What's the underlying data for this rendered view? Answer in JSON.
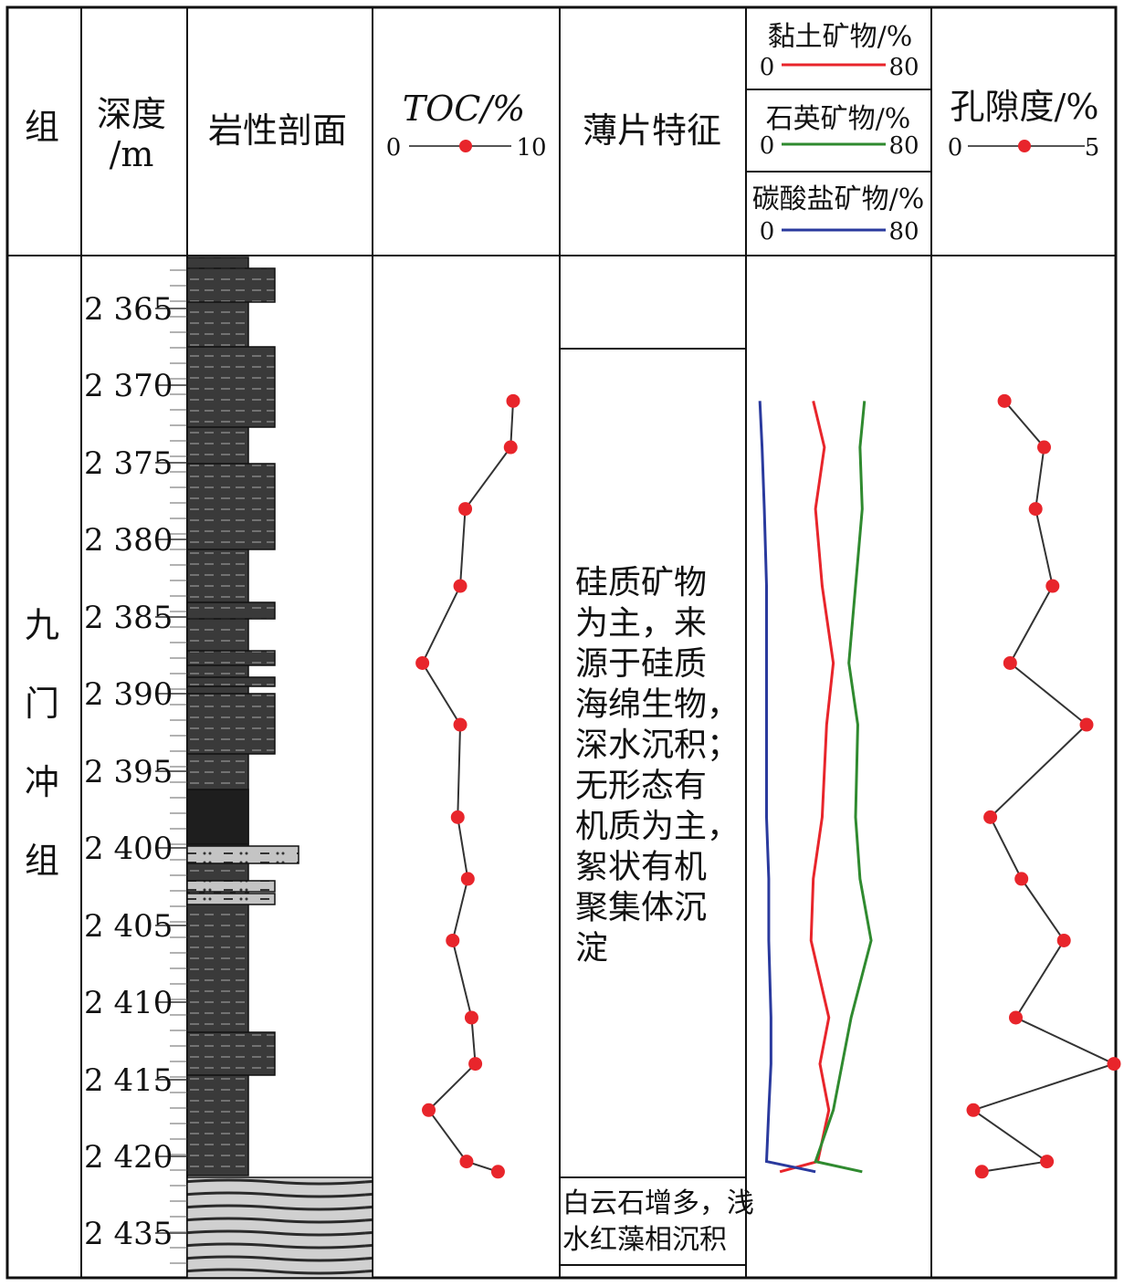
{
  "header": {
    "formation": "组",
    "depth": [
      "深度",
      "/m"
    ],
    "lithology": "岩性剖面",
    "toc": "TOC/%",
    "toc_min": "0",
    "toc_max": "10",
    "thin_section": "薄片特征",
    "clay": "黏土矿物/%",
    "quartz": "石英矿物/%",
    "carbonate": "碳酸盐矿物/%",
    "mineral_min": "0",
    "mineral_max": "80",
    "porosity": "孔隙度/%",
    "por_min": "0",
    "por_max": "5"
  },
  "formation_name": [
    "九",
    "门",
    "冲",
    "组"
  ],
  "thin_section_notes": {
    "main": [
      "硅质矿物",
      "为主，来",
      "源于硅质",
      "海绵生物，",
      "深水沉积；",
      "无形态有",
      "机质为主，",
      "絮状有机",
      "聚集体沉",
      "淀"
    ],
    "lower": [
      "白云石增多，浅",
      "水红藻相沉积"
    ]
  },
  "colors": {
    "clay": "#e8252b",
    "quartz": "#2f8a2f",
    "carbonate": "#2a3a9e",
    "marker": "#e8252b",
    "line": "#333333",
    "shale": "#333333",
    "limestone": "#bfbfbf"
  },
  "chart_data": {
    "type": "line",
    "depth_ticks": [
      "2 365",
      "2 370",
      "2 375",
      "2 380",
      "2 385",
      "2 390",
      "2 395",
      "2 400",
      "2 405",
      "2 410",
      "2 415",
      "2 420",
      "2 435"
    ],
    "toc": {
      "xlim": [
        0,
        10
      ],
      "points": [
        {
          "depth": 2371,
          "value": 10.0
        },
        {
          "depth": 2374,
          "value": 9.8
        },
        {
          "depth": 2378,
          "value": 6.2
        },
        {
          "depth": 2383,
          "value": 5.8
        },
        {
          "depth": 2388,
          "value": 2.8
        },
        {
          "depth": 2392,
          "value": 5.8
        },
        {
          "depth": 2398,
          "value": 5.6
        },
        {
          "depth": 2402,
          "value": 6.4
        },
        {
          "depth": 2406,
          "value": 5.2
        },
        {
          "depth": 2411,
          "value": 6.7
        },
        {
          "depth": 2414,
          "value": 7.0
        },
        {
          "depth": 2417,
          "value": 3.3
        },
        {
          "depth": 2421,
          "value": 6.3
        },
        {
          "depth": 2423,
          "value": 8.8
        }
      ]
    },
    "porosity": {
      "xlim": [
        0,
        5
      ],
      "points": [
        {
          "depth": 2371,
          "value": 2.1
        },
        {
          "depth": 2374,
          "value": 3.5
        },
        {
          "depth": 2378,
          "value": 3.2
        },
        {
          "depth": 2383,
          "value": 3.8
        },
        {
          "depth": 2388,
          "value": 2.3
        },
        {
          "depth": 2392,
          "value": 5.0
        },
        {
          "depth": 2398,
          "value": 1.6
        },
        {
          "depth": 2402,
          "value": 2.7
        },
        {
          "depth": 2406,
          "value": 4.2
        },
        {
          "depth": 2411,
          "value": 2.5
        },
        {
          "depth": 2414,
          "value": 7.0
        },
        {
          "depth": 2417,
          "value": 1.0
        },
        {
          "depth": 2421,
          "value": 3.6
        },
        {
          "depth": 2423,
          "value": 1.3
        }
      ]
    },
    "minerals": {
      "xlim": [
        0,
        80
      ],
      "series": [
        {
          "name": "黏土矿物/%",
          "points": [
            {
              "depth": 2371,
              "value": 29
            },
            {
              "depth": 2374,
              "value": 34
            },
            {
              "depth": 2378,
              "value": 30
            },
            {
              "depth": 2383,
              "value": 33
            },
            {
              "depth": 2388,
              "value": 38
            },
            {
              "depth": 2392,
              "value": 35
            },
            {
              "depth": 2398,
              "value": 33
            },
            {
              "depth": 2402,
              "value": 29
            },
            {
              "depth": 2406,
              "value": 28
            },
            {
              "depth": 2411,
              "value": 36
            },
            {
              "depth": 2414,
              "value": 32
            },
            {
              "depth": 2417,
              "value": 36
            },
            {
              "depth": 2421,
              "value": 31
            },
            {
              "depth": 2423,
              "value": 14
            }
          ]
        },
        {
          "name": "石英矿物/%",
          "points": [
            {
              "depth": 2371,
              "value": 52
            },
            {
              "depth": 2374,
              "value": 50
            },
            {
              "depth": 2378,
              "value": 51
            },
            {
              "depth": 2383,
              "value": 48
            },
            {
              "depth": 2388,
              "value": 45
            },
            {
              "depth": 2392,
              "value": 49
            },
            {
              "depth": 2398,
              "value": 48
            },
            {
              "depth": 2402,
              "value": 50
            },
            {
              "depth": 2406,
              "value": 55
            },
            {
              "depth": 2411,
              "value": 46
            },
            {
              "depth": 2414,
              "value": 42
            },
            {
              "depth": 2417,
              "value": 38
            },
            {
              "depth": 2421,
              "value": 30
            },
            {
              "depth": 2423,
              "value": 51
            }
          ]
        },
        {
          "name": "碳酸盐矿物/%",
          "points": [
            {
              "depth": 2371,
              "value": 5
            },
            {
              "depth": 2374,
              "value": 6
            },
            {
              "depth": 2378,
              "value": 7
            },
            {
              "depth": 2383,
              "value": 8
            },
            {
              "depth": 2388,
              "value": 8
            },
            {
              "depth": 2392,
              "value": 8
            },
            {
              "depth": 2398,
              "value": 8
            },
            {
              "depth": 2402,
              "value": 9
            },
            {
              "depth": 2406,
              "value": 9
            },
            {
              "depth": 2411,
              "value": 10
            },
            {
              "depth": 2414,
              "value": 10
            },
            {
              "depth": 2417,
              "value": 9
            },
            {
              "depth": 2421,
              "value": 8
            },
            {
              "depth": 2423,
              "value": 30
            }
          ]
        }
      ]
    }
  }
}
